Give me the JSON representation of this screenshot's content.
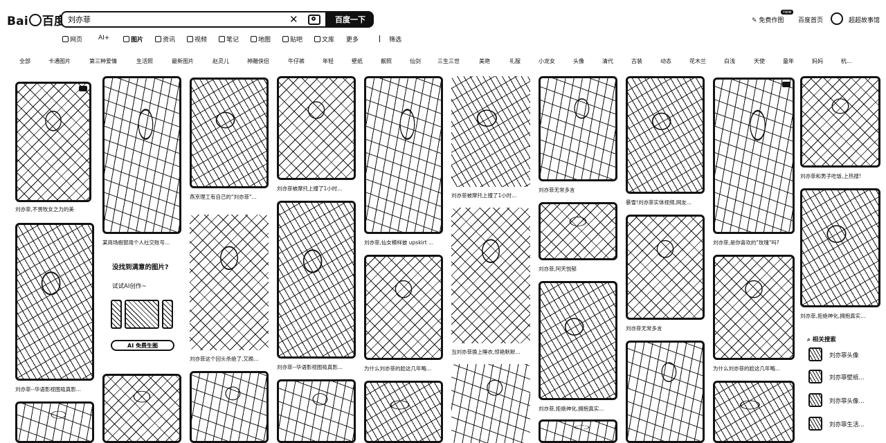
{
  "header": {
    "logo": {
      "left": "Bai",
      "right": "百度"
    },
    "search_value": "刘亦菲",
    "search_button": "百度一下",
    "ai_image": "免费作图",
    "new_badge": "new",
    "home": "百度首页",
    "user": "超超故事馆"
  },
  "nav": [
    {
      "label": "网页",
      "active": false
    },
    {
      "label": "AI+",
      "active": false
    },
    {
      "label": "图片",
      "active": true
    },
    {
      "label": "资讯",
      "active": false
    },
    {
      "label": "视频",
      "active": false
    },
    {
      "label": "笔记",
      "active": false
    },
    {
      "label": "地图",
      "active": false
    },
    {
      "label": "贴吧",
      "active": false
    },
    {
      "label": "文库",
      "active": false
    },
    {
      "label": "更多",
      "active": false
    },
    {
      "label": "筛选",
      "active": false
    }
  ],
  "categories": [
    "全部",
    "卡通图片",
    "第三种爱情",
    "生活照",
    "最新图片",
    "赵灵儿",
    "神雕侠侣",
    "牛仔裤",
    "年轻",
    "壁纸",
    "靓照",
    "仙剑",
    "三生三世",
    "美艳",
    "礼服",
    "小龙女",
    "头像",
    "清代",
    "古装",
    "动态",
    "花木兰",
    "白浅",
    "天使",
    "童年",
    "妈妈",
    "杭..."
  ],
  "captions": {
    "c1": "刘亦菲,不畏牧女之力的美",
    "c2": "某商场橱窗用个人社交账号...",
    "c3": "燕京理工有自己的\"刘亦菲\"...",
    "c4": "刘亦菲被摩托上撞了1小时...",
    "c5": "刘亦菲,仙女模样披 upskirt ...",
    "c6": "刘亦菲被摩托上撞了1小时...",
    "c7": "刘亦菲无常多言",
    "c8": "暴雪!刘亦菲实体视频,网友...",
    "c9": "刘亦菲,是你喜欢的\"玫瑰\"吗?",
    "c10": "刘亦菲和男子吃饭,上热搜!",
    "c11": "刘亦菲,阿天悦郁",
    "c12": "刘亦菲这个回头杀绝了,又跪...",
    "c13": "刘亦菲--华语影视图吸真影...",
    "c14": "为什么刘亦菲的脸这几年略...",
    "c15": "当刘亦菲换上睡衣,惊艳默默...",
    "c16": "刘亦菲无常多言",
    "c17": "为什么刘亦菲的脸这几年略...",
    "c18": "刘亦菲,拒绝神化,拥抱真实...",
    "c19": "刘亦菲--华语影视图吸真影...",
    "c20": "刘亦菲,拒绝神化,拥抱真实..."
  },
  "ai_card": {
    "title": "没找到满意的图片?",
    "subtitle": "试试AI创作~",
    "button": "AI 免费生图"
  },
  "related": {
    "title": "相关搜索",
    "items": [
      "刘亦菲头像",
      "刘亦菲壁纸...",
      "刘亦菲头像...",
      "刘亦菲生活..."
    ]
  }
}
